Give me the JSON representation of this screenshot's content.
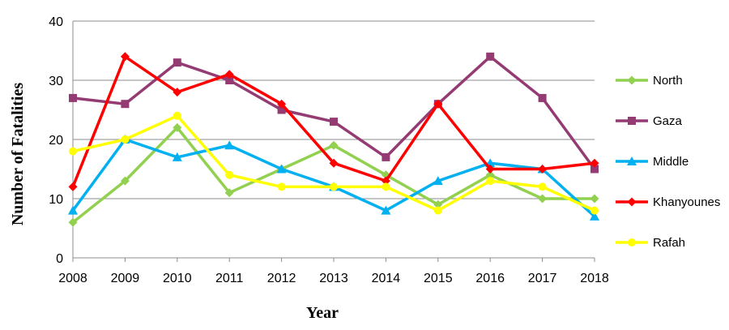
{
  "chart_data": {
    "type": "line",
    "title": "",
    "xlabel": "Year",
    "ylabel": "Number of Fatalities",
    "x": [
      "2008",
      "2009",
      "2010",
      "2011",
      "2012",
      "2013",
      "2014",
      "2015",
      "2016",
      "2017",
      "2018"
    ],
    "ylim": [
      0,
      40
    ],
    "yticks": [
      "0",
      "10",
      "20",
      "30",
      "40"
    ],
    "grid": true,
    "legend_position": "right",
    "series": [
      {
        "name": "North",
        "color": "#92D050",
        "marker": "diamond",
        "values": [
          6,
          13,
          22,
          11,
          15,
          19,
          14,
          9,
          14,
          10,
          10
        ]
      },
      {
        "name": "Gaza",
        "color": "#953B73",
        "marker": "square",
        "values": [
          27,
          26,
          33,
          30,
          25,
          23,
          17,
          26,
          34,
          27,
          15
        ]
      },
      {
        "name": "Middle",
        "color": "#00B0F0",
        "marker": "triangle",
        "values": [
          8,
          20,
          17,
          19,
          15,
          12,
          8,
          13,
          16,
          15,
          7
        ]
      },
      {
        "name": "Khanyounes",
        "color": "#FF0000",
        "marker": "diamond",
        "values": [
          12,
          34,
          28,
          31,
          26,
          16,
          13,
          26,
          15,
          15,
          16
        ]
      },
      {
        "name": "Rafah",
        "color": "#FFFF00",
        "marker": "circle",
        "values": [
          18,
          20,
          24,
          14,
          12,
          12,
          12,
          8,
          13,
          12,
          8
        ]
      }
    ]
  }
}
